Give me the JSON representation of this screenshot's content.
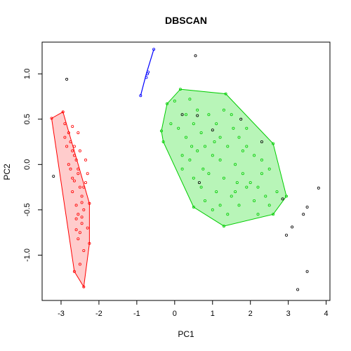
{
  "chart_data": {
    "type": "scatter",
    "title": "DBSCAN",
    "xlabel": "PC1",
    "ylabel": "PC2",
    "xlim": [
      -3.5,
      4.1
    ],
    "ylim": [
      -1.5,
      1.35
    ],
    "x_ticks": [
      -3,
      -2,
      -1,
      0,
      1,
      2,
      3,
      4
    ],
    "x_tick_labels": [
      "-3",
      "-2",
      "-1",
      "0",
      "1",
      "2",
      "3",
      "4"
    ],
    "y_ticks": [
      -1.0,
      -0.5,
      0.0,
      0.5,
      1.0
    ],
    "y_tick_labels": [
      "-1.0",
      "-0.5",
      "0.0",
      "0.5",
      "1.0"
    ],
    "grid": false,
    "legend": "none",
    "colors": {
      "noise": "#000000",
      "cluster1": "#ff0000",
      "cluster1_fill": "#ffcccc",
      "cluster2": "#00cd00",
      "cluster2_fill": "#b8f5b8",
      "cluster3": "#0000ff"
    },
    "series": [
      {
        "id": "noise",
        "hull": null,
        "points": [
          [
            -3.2,
            -0.13
          ],
          [
            -2.85,
            0.94
          ],
          [
            0.55,
            1.2
          ],
          [
            1.75,
            0.5
          ],
          [
            2.3,
            0.25
          ],
          [
            2.85,
            -0.38
          ],
          [
            2.95,
            -0.78
          ],
          [
            3.1,
            -0.69
          ],
          [
            3.25,
            -1.38
          ],
          [
            3.4,
            -0.55
          ],
          [
            3.5,
            -0.47
          ],
          [
            3.5,
            -1.18
          ],
          [
            3.8,
            -0.26
          ],
          [
            0.2,
            0.55
          ],
          [
            0.6,
            0.54
          ],
          [
            1.0,
            0.38
          ],
          [
            0.65,
            -0.2
          ]
        ]
      },
      {
        "id": "cluster1",
        "hull": [
          [
            -3.25,
            0.51
          ],
          [
            -2.95,
            0.58
          ],
          [
            -2.25,
            -0.43
          ],
          [
            -2.25,
            -0.87
          ],
          [
            -2.4,
            -1.35
          ],
          [
            -2.65,
            -1.18
          ],
          [
            -3.25,
            0.51
          ]
        ],
        "points": [
          [
            -3.25,
            0.51
          ],
          [
            -2.95,
            0.58
          ],
          [
            -2.9,
            0.45
          ],
          [
            -2.8,
            0.35
          ],
          [
            -2.85,
            0.2
          ],
          [
            -2.75,
            0.25
          ],
          [
            -2.7,
            0.15
          ],
          [
            -2.65,
            0.2
          ],
          [
            -2.6,
            0.05
          ],
          [
            -2.75,
            -0.05
          ],
          [
            -2.55,
            -0.1
          ],
          [
            -2.65,
            -0.18
          ],
          [
            -2.5,
            -0.25
          ],
          [
            -2.7,
            -0.3
          ],
          [
            -2.45,
            -0.35
          ],
          [
            -2.6,
            -0.45
          ],
          [
            -2.4,
            -0.5
          ],
          [
            -2.55,
            -0.55
          ],
          [
            -2.45,
            -0.65
          ],
          [
            -2.6,
            -0.72
          ],
          [
            -2.55,
            -0.82
          ],
          [
            -2.4,
            -0.95
          ],
          [
            -2.5,
            -1.1
          ],
          [
            -2.65,
            -1.18
          ],
          [
            -2.4,
            -1.35
          ],
          [
            -2.25,
            -0.43
          ],
          [
            -2.25,
            -0.87
          ],
          [
            -2.3,
            -0.7
          ],
          [
            -2.4,
            -0.25
          ],
          [
            -2.3,
            -0.1
          ],
          [
            -2.35,
            0.05
          ],
          [
            -2.55,
            0.35
          ],
          [
            -2.9,
            0.3
          ],
          [
            -2.8,
            0.0
          ],
          [
            -2.7,
            -0.15
          ],
          [
            -2.6,
            -0.6
          ],
          [
            -2.5,
            -0.75
          ],
          [
            -2.45,
            -0.42
          ],
          [
            -2.35,
            -0.2
          ],
          [
            -2.65,
            0.1
          ],
          [
            -2.55,
            -0.05
          ],
          [
            -2.7,
            0.42
          ],
          [
            -2.5,
            0.15
          ],
          [
            -2.45,
            -0.58
          ]
        ]
      },
      {
        "id": "cluster2",
        "hull": [
          [
            -0.35,
            0.37
          ],
          [
            -0.2,
            0.67
          ],
          [
            0.15,
            0.83
          ],
          [
            1.35,
            0.78
          ],
          [
            2.6,
            0.23
          ],
          [
            2.95,
            -0.35
          ],
          [
            2.6,
            -0.55
          ],
          [
            1.3,
            -0.68
          ],
          [
            0.5,
            -0.47
          ],
          [
            -0.3,
            0.25
          ],
          [
            -0.35,
            0.37
          ]
        ],
        "points": [
          [
            -0.35,
            0.37
          ],
          [
            -0.2,
            0.67
          ],
          [
            0.15,
            0.83
          ],
          [
            1.35,
            0.78
          ],
          [
            2.6,
            0.23
          ],
          [
            2.95,
            -0.35
          ],
          [
            2.6,
            -0.55
          ],
          [
            1.3,
            -0.68
          ],
          [
            0.5,
            -0.47
          ],
          [
            -0.3,
            0.25
          ],
          [
            0.0,
            0.7
          ],
          [
            0.4,
            0.72
          ],
          [
            -0.1,
            0.45
          ],
          [
            0.1,
            0.4
          ],
          [
            0.3,
            0.3
          ],
          [
            0.5,
            0.45
          ],
          [
            0.7,
            0.35
          ],
          [
            0.9,
            0.55
          ],
          [
            1.1,
            0.45
          ],
          [
            1.3,
            0.6
          ],
          [
            1.5,
            0.55
          ],
          [
            1.7,
            0.3
          ],
          [
            1.9,
            0.2
          ],
          [
            2.1,
            0.1
          ],
          [
            2.3,
            -0.1
          ],
          [
            2.5,
            -0.05
          ],
          [
            2.7,
            -0.3
          ],
          [
            0.2,
            0.1
          ],
          [
            0.4,
            0.05
          ],
          [
            0.6,
            0.15
          ],
          [
            0.8,
            0.2
          ],
          [
            1.0,
            0.1
          ],
          [
            1.2,
            0.05
          ],
          [
            1.4,
            0.2
          ],
          [
            1.6,
            0.0
          ],
          [
            1.8,
            -0.1
          ],
          [
            2.0,
            -0.2
          ],
          [
            2.2,
            -0.25
          ],
          [
            2.4,
            -0.35
          ],
          [
            0.5,
            -0.15
          ],
          [
            0.7,
            -0.25
          ],
          [
            0.9,
            -0.1
          ],
          [
            1.1,
            -0.3
          ],
          [
            1.3,
            -0.15
          ],
          [
            1.5,
            -0.35
          ],
          [
            1.7,
            -0.45
          ],
          [
            1.9,
            -0.25
          ],
          [
            2.1,
            -0.4
          ],
          [
            0.8,
            -0.4
          ],
          [
            1.0,
            -0.5
          ],
          [
            1.2,
            -0.45
          ],
          [
            1.4,
            -0.55
          ],
          [
            1.6,
            -0.3
          ],
          [
            2.3,
            0.05
          ],
          [
            1.8,
            0.15
          ],
          [
            0.3,
            0.55
          ],
          [
            0.6,
            0.6
          ],
          [
            1.2,
            0.3
          ],
          [
            0.2,
            -0.05
          ],
          [
            1.9,
            0.4
          ],
          [
            2.5,
            -0.45
          ],
          [
            0.75,
            -0.05
          ],
          [
            1.55,
            0.4
          ],
          [
            2.2,
            -0.55
          ],
          [
            1.05,
            0.25
          ],
          [
            0.45,
            0.2
          ],
          [
            1.65,
            -0.2
          ]
        ]
      },
      {
        "id": "cluster3",
        "hull": [
          [
            -0.9,
            0.76
          ],
          [
            -0.75,
            1.0
          ],
          [
            -0.55,
            1.27
          ]
        ],
        "points": [
          [
            -0.9,
            0.76
          ],
          [
            -0.75,
            0.96
          ],
          [
            -0.72,
            1.0
          ],
          [
            -0.7,
            1.02
          ],
          [
            -0.55,
            1.27
          ]
        ]
      }
    ]
  }
}
